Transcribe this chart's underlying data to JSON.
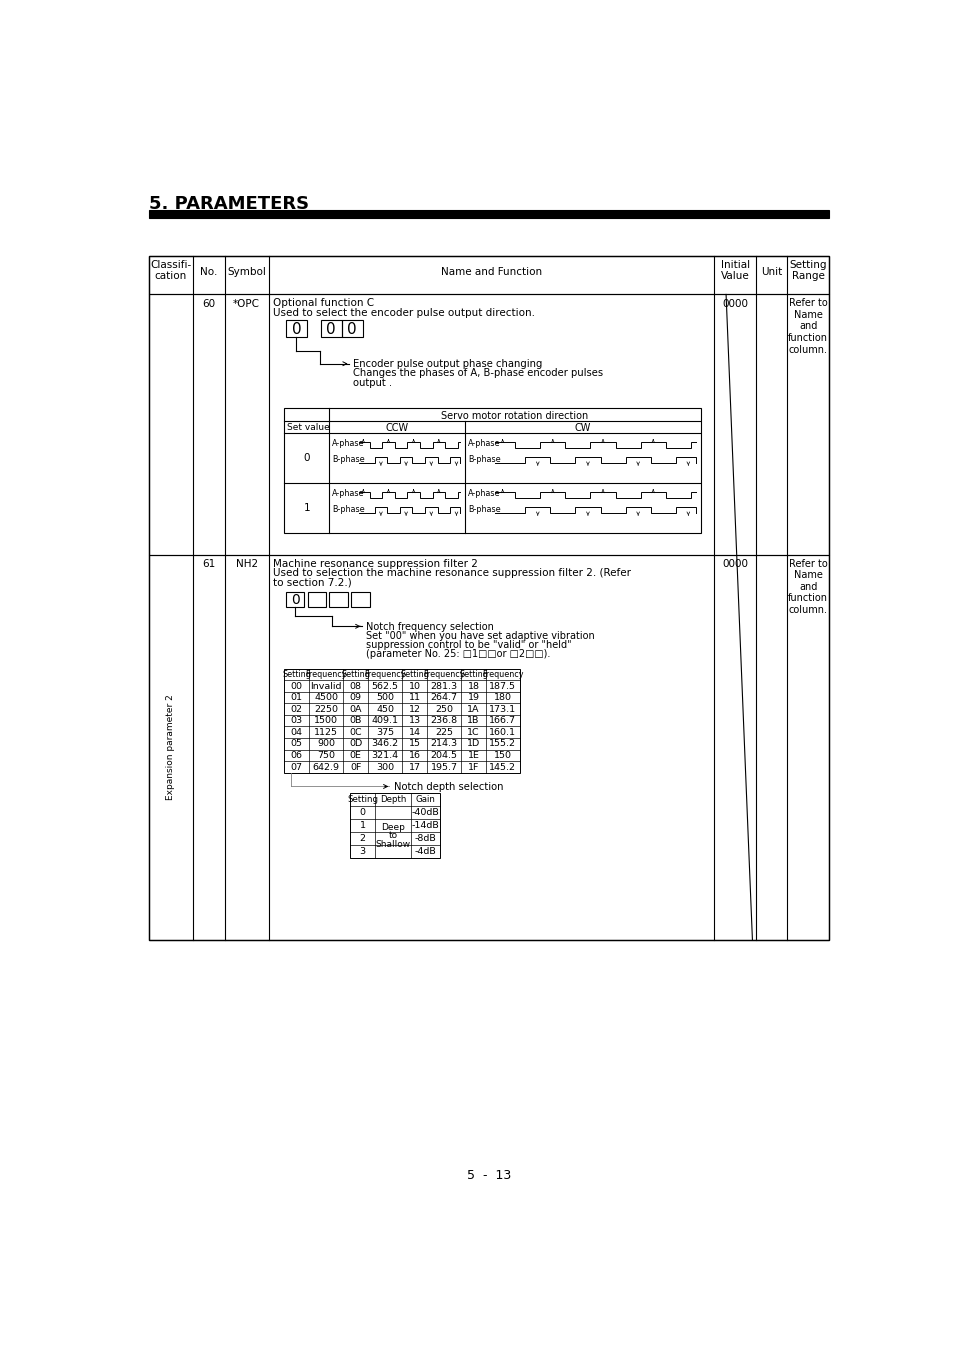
{
  "title": "5. PARAMETERS",
  "page_number": "5 - 13",
  "freq_table_header": [
    "Setting",
    "Frequency",
    "Setting",
    "Frequency",
    "Setting",
    "Frequency",
    "Setting",
    "Frequency"
  ],
  "freq_table_data": [
    [
      "00",
      "Invalid",
      "08",
      "562.5",
      "10",
      "281.3",
      "18",
      "187.5"
    ],
    [
      "01",
      "4500",
      "09",
      "500",
      "11",
      "264.7",
      "19",
      "180"
    ],
    [
      "02",
      "2250",
      "0A",
      "450",
      "12",
      "250",
      "1A",
      "173.1"
    ],
    [
      "03",
      "1500",
      "0B",
      "409.1",
      "13",
      "236.8",
      "1B",
      "166.7"
    ],
    [
      "04",
      "1125",
      "0C",
      "375",
      "14",
      "225",
      "1C",
      "160.1"
    ],
    [
      "05",
      "900",
      "0D",
      "346.2",
      "15",
      "214.3",
      "1D",
      "155.2"
    ],
    [
      "06",
      "750",
      "0E",
      "321.4",
      "16",
      "204.5",
      "1E",
      "150"
    ],
    [
      "07",
      "642.9",
      "0F",
      "300",
      "17",
      "195.7",
      "1F",
      "145.2"
    ]
  ],
  "depth_table_data": [
    [
      "0",
      "-40dB"
    ],
    [
      "1",
      "-14dB"
    ],
    [
      "2",
      "-8dB"
    ],
    [
      "3",
      "-4dB"
    ]
  ]
}
